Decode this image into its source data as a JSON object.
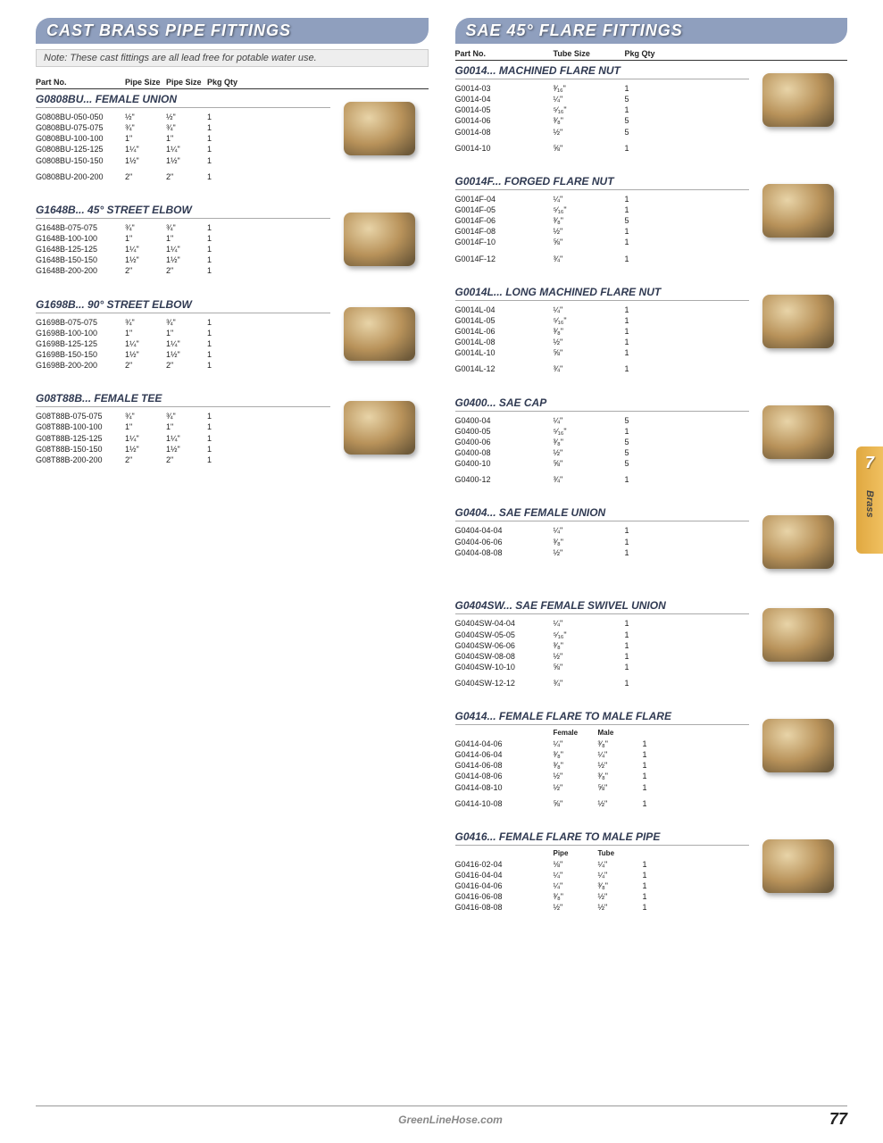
{
  "colors": {
    "header1": "#8f9fbe",
    "header2": "#8f9fbe",
    "tab": "#e8b050"
  },
  "left": {
    "title": "CAST BRASS PIPE FITTINGS",
    "note": "Note: These cast fittings are all lead free for potable water use.",
    "headers": [
      "Part No.",
      "Pipe Size",
      "Pipe Size",
      "Pkg Qty"
    ],
    "groups": [
      {
        "name": "G0808BU... FEMALE UNION",
        "rows": [
          [
            "G0808BU-050-050",
            "½\"",
            "½\"",
            "1"
          ],
          [
            "G0808BU-075-075",
            "¾\"",
            "¾\"",
            "1"
          ],
          [
            "G0808BU-100-100",
            "1\"",
            "1\"",
            "1"
          ],
          [
            "G0808BU-125-125",
            "1¼\"",
            "1¼\"",
            "1"
          ],
          [
            "G0808BU-150-150",
            "1½\"",
            "1½\"",
            "1"
          ]
        ],
        "extra": [
          [
            "G0808BU-200-200",
            "2\"",
            "2\"",
            "1"
          ]
        ]
      },
      {
        "name": "G1648B... 45° STREET ELBOW",
        "rows": [
          [
            "G1648B-075-075",
            "¾\"",
            "¾\"",
            "1"
          ],
          [
            "G1648B-100-100",
            "1\"",
            "1\"",
            "1"
          ],
          [
            "G1648B-125-125",
            "1¼\"",
            "1¼\"",
            "1"
          ],
          [
            "G1648B-150-150",
            "1½\"",
            "1½\"",
            "1"
          ],
          [
            "G1648B-200-200",
            "2\"",
            "2\"",
            "1"
          ]
        ]
      },
      {
        "name": "G1698B... 90° STREET ELBOW",
        "rows": [
          [
            "G1698B-075-075",
            "¾\"",
            "¾\"",
            "1"
          ],
          [
            "G1698B-100-100",
            "1\"",
            "1\"",
            "1"
          ],
          [
            "G1698B-125-125",
            "1¼\"",
            "1¼\"",
            "1"
          ],
          [
            "G1698B-150-150",
            "1½\"",
            "1½\"",
            "1"
          ],
          [
            "G1698B-200-200",
            "2\"",
            "2\"",
            "1"
          ]
        ]
      },
      {
        "name": "G08T88B... FEMALE TEE",
        "rows": [
          [
            "G08T88B-075-075",
            "¾\"",
            "¾\"",
            "1"
          ],
          [
            "G08T88B-100-100",
            "1\"",
            "1\"",
            "1"
          ],
          [
            "G08T88B-125-125",
            "1¼\"",
            "1¼\"",
            "1"
          ],
          [
            "G08T88B-150-150",
            "1½\"",
            "1½\"",
            "1"
          ],
          [
            "G08T88B-200-200",
            "2\"",
            "2\"",
            "1"
          ]
        ]
      }
    ]
  },
  "right": {
    "title": "SAE 45° FLARE FITTINGS",
    "headers": [
      "Part No.",
      "Tube Size",
      "Pkg Qty"
    ],
    "groups": [
      {
        "name": "G0014... MACHINED FLARE NUT",
        "rows": [
          [
            "G0014-03",
            "³⁄₁₆\"",
            "1"
          ],
          [
            "G0014-04",
            "¼\"",
            "5"
          ],
          [
            "G0014-05",
            "⁵⁄₁₆\"",
            "1"
          ],
          [
            "G0014-06",
            "³⁄₈\"",
            "5"
          ],
          [
            "G0014-08",
            "½\"",
            "5"
          ]
        ],
        "extra": [
          [
            "G0014-10",
            "⅝\"",
            "1"
          ]
        ]
      },
      {
        "name": "G0014F... FORGED FLARE NUT",
        "rows": [
          [
            "G0014F-04",
            "¼\"",
            "1"
          ],
          [
            "G0014F-05",
            "⁵⁄₁₆\"",
            "1"
          ],
          [
            "G0014F-06",
            "³⁄₈\"",
            "5"
          ],
          [
            "G0014F-08",
            "½\"",
            "1"
          ],
          [
            "G0014F-10",
            "⅝\"",
            "1"
          ]
        ],
        "extra": [
          [
            "G0014F-12",
            "¾\"",
            "1"
          ]
        ]
      },
      {
        "name": "G0014L... LONG MACHINED FLARE NUT",
        "rows": [
          [
            "G0014L-04",
            "¼\"",
            "1"
          ],
          [
            "G0014L-05",
            "⁵⁄₁₆\"",
            "1"
          ],
          [
            "G0014L-06",
            "³⁄₈\"",
            "1"
          ],
          [
            "G0014L-08",
            "½\"",
            "1"
          ],
          [
            "G0014L-10",
            "⅝\"",
            "1"
          ]
        ],
        "extra": [
          [
            "G0014L-12",
            "¾\"",
            "1"
          ]
        ]
      },
      {
        "name": "G0400... SAE CAP",
        "rows": [
          [
            "G0400-04",
            "¼\"",
            "5"
          ],
          [
            "G0400-05",
            "⁵⁄₁₆\"",
            "1"
          ],
          [
            "G0400-06",
            "³⁄₈\"",
            "5"
          ],
          [
            "G0400-08",
            "½\"",
            "5"
          ],
          [
            "G0400-10",
            "⅝\"",
            "5"
          ]
        ],
        "extra": [
          [
            "G0400-12",
            "¾\"",
            "1"
          ]
        ]
      },
      {
        "name": "G0404... SAE FEMALE UNION",
        "rows": [
          [
            "G0404-04-04",
            "¼\"",
            "1"
          ],
          [
            "G0404-06-06",
            "³⁄₈\"",
            "1"
          ],
          [
            "G0404-08-08",
            "½\"",
            "1"
          ]
        ]
      },
      {
        "name": "G0404SW... SAE FEMALE SWIVEL UNION",
        "rows": [
          [
            "G0404SW-04-04",
            "¼\"",
            "1"
          ],
          [
            "G0404SW-05-05",
            "⁵⁄₁₆\"",
            "1"
          ],
          [
            "G0404SW-06-06",
            "³⁄₈\"",
            "1"
          ],
          [
            "G0404SW-08-08",
            "½\"",
            "1"
          ],
          [
            "G0404SW-10-10",
            "⅝\"",
            "1"
          ]
        ],
        "extra": [
          [
            "G0404SW-12-12",
            "¾\"",
            "1"
          ]
        ]
      },
      {
        "name": "G0414... FEMALE FLARE TO MALE FLARE",
        "sub": [
          "Female",
          "Male"
        ],
        "rows2": [
          [
            "G0414-04-06",
            "¼\"",
            "³⁄₈\"",
            "1"
          ],
          [
            "G0414-06-04",
            "³⁄₈\"",
            "¼\"",
            "1"
          ],
          [
            "G0414-06-08",
            "³⁄₈\"",
            "½\"",
            "1"
          ],
          [
            "G0414-08-06",
            "½\"",
            "³⁄₈\"",
            "1"
          ],
          [
            "G0414-08-10",
            "½\"",
            "⅝\"",
            "1"
          ]
        ],
        "extra2": [
          [
            "G0414-10-08",
            "⅝\"",
            "½\"",
            "1"
          ]
        ]
      },
      {
        "name": "G0416... FEMALE FLARE TO MALE PIPE",
        "sub": [
          "Pipe",
          "Tube"
        ],
        "rows2": [
          [
            "G0416-02-04",
            "⅛\"",
            "¼\"",
            "1"
          ],
          [
            "G0416-04-04",
            "¼\"",
            "¼\"",
            "1"
          ],
          [
            "G0416-04-06",
            "¼\"",
            "³⁄₈\"",
            "1"
          ],
          [
            "G0416-06-08",
            "³⁄₈\"",
            "½\"",
            "1"
          ],
          [
            "G0416-08-08",
            "½\"",
            "½\"",
            "1"
          ]
        ]
      }
    ]
  },
  "tab": {
    "num": "7",
    "label": "Brass"
  },
  "footer": {
    "site": "GreenLineHose.com",
    "page": "77"
  }
}
